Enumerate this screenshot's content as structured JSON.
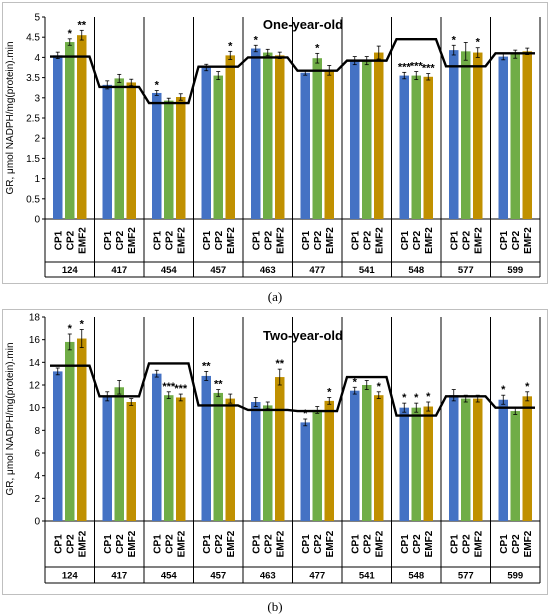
{
  "chart_data": [
    {
      "type": "bar",
      "panel_label": "(a)",
      "title": "One-year-old",
      "ylabel": "GR, μmol NADPH/mg(protein).min",
      "ylim": [
        0,
        5
      ],
      "yticks": [
        0,
        0.5,
        1,
        1.5,
        2,
        2.5,
        3,
        3.5,
        4,
        4.5,
        5
      ],
      "tick_labels": [
        "0",
        "0.5",
        "1",
        "1.5",
        "2",
        "2.5",
        "3",
        "3.5",
        "4",
        "4.5",
        "5"
      ],
      "grid": false,
      "groups": [
        "124",
        "417",
        "454",
        "457",
        "463",
        "477",
        "541",
        "548",
        "577",
        "599"
      ],
      "bar_labels": [
        "CP1",
        "CP2",
        "EMF2"
      ],
      "colors": [
        "#4472c4",
        "#70ad47",
        "#c09000"
      ],
      "values": [
        [
          4.05,
          4.38,
          4.55
        ],
        [
          3.32,
          3.48,
          3.38
        ],
        [
          3.12,
          2.93,
          3.02
        ],
        [
          3.75,
          3.55,
          4.05
        ],
        [
          4.22,
          4.12,
          4.05
        ],
        [
          3.62,
          3.98,
          3.68
        ],
        [
          3.92,
          3.92,
          4.12
        ],
        [
          3.55,
          3.55,
          3.52
        ],
        [
          4.18,
          4.15,
          4.12
        ],
        [
          4.02,
          4.08,
          4.15
        ]
      ],
      "errors": [
        [
          0.08,
          0.08,
          0.12
        ],
        [
          0.1,
          0.1,
          0.08
        ],
        [
          0.06,
          0.06,
          0.08
        ],
        [
          0.08,
          0.1,
          0.1
        ],
        [
          0.08,
          0.08,
          0.08
        ],
        [
          0.06,
          0.12,
          0.12
        ],
        [
          0.1,
          0.1,
          0.16
        ],
        [
          0.08,
          0.1,
          0.08
        ],
        [
          0.12,
          0.22,
          0.12
        ],
        [
          0.08,
          0.1,
          0.08
        ]
      ],
      "annotations": [
        [
          "",
          "*",
          "**"
        ],
        [
          "",
          "",
          ""
        ],
        [
          "*",
          "",
          ""
        ],
        [
          "",
          "",
          "*"
        ],
        [
          "*",
          "",
          ""
        ],
        [
          "",
          "*",
          ""
        ],
        [
          "",
          "",
          ""
        ],
        [
          "***",
          "***",
          "***"
        ],
        [
          "*",
          "",
          "*"
        ],
        [
          "",
          "",
          ""
        ]
      ],
      "control_level": [
        4.02,
        3.27,
        2.87,
        3.77,
        4.0,
        3.67,
        3.92,
        4.45,
        3.78,
        4.1
      ]
    },
    {
      "type": "bar",
      "panel_label": "(b)",
      "title": "Two-year-old",
      "ylabel": "GR, μmol NADPH/mg(protein).min",
      "ylim": [
        0,
        18
      ],
      "yticks": [
        0,
        2,
        4,
        6,
        8,
        10,
        12,
        14,
        16,
        18
      ],
      "tick_labels": [
        "0",
        "2",
        "4",
        "6",
        "8",
        "10",
        "12",
        "14",
        "16",
        "18"
      ],
      "grid": false,
      "groups": [
        "124",
        "417",
        "454",
        "457",
        "463",
        "477",
        "541",
        "548",
        "577",
        "599"
      ],
      "bar_labels": [
        "CP1",
        "CP2",
        "EMF2"
      ],
      "colors": [
        "#4472c4",
        "#70ad47",
        "#c09000"
      ],
      "values": [
        [
          13.2,
          15.8,
          16.1
        ],
        [
          11.0,
          11.8,
          10.5
        ],
        [
          13.0,
          11.1,
          10.9
        ],
        [
          12.8,
          11.3,
          10.8
        ],
        [
          10.5,
          10.2,
          12.7
        ],
        [
          8.7,
          9.8,
          10.6
        ],
        [
          11.5,
          12.0,
          11.1
        ],
        [
          10.0,
          10.0,
          10.1
        ],
        [
          11.1,
          10.8,
          10.8
        ],
        [
          10.7,
          9.7,
          11.0
        ]
      ],
      "errors": [
        [
          0.3,
          0.7,
          0.8
        ],
        [
          0.4,
          0.6,
          0.3
        ],
        [
          0.3,
          0.3,
          0.3
        ],
        [
          0.4,
          0.3,
          0.4
        ],
        [
          0.4,
          0.3,
          0.7
        ],
        [
          0.3,
          0.3,
          0.3
        ],
        [
          0.3,
          0.4,
          0.3
        ],
        [
          0.4,
          0.4,
          0.4
        ],
        [
          0.5,
          0.3,
          0.3
        ],
        [
          0.4,
          0.3,
          0.4
        ]
      ],
      "annotations": [
        [
          "",
          "*",
          "*"
        ],
        [
          "",
          "",
          ""
        ],
        [
          "",
          "***",
          "***"
        ],
        [
          "**",
          "**",
          ""
        ],
        [
          "",
          "",
          "**"
        ],
        [
          "*",
          "",
          "*"
        ],
        [
          "*",
          "",
          "*"
        ],
        [
          "*",
          "*",
          "*"
        ],
        [
          "",
          "",
          ""
        ],
        [
          "*",
          "",
          "*"
        ]
      ],
      "control_level": [
        13.7,
        11.0,
        13.9,
        10.2,
        9.8,
        9.7,
        12.7,
        9.3,
        11.0,
        10.0
      ]
    }
  ]
}
